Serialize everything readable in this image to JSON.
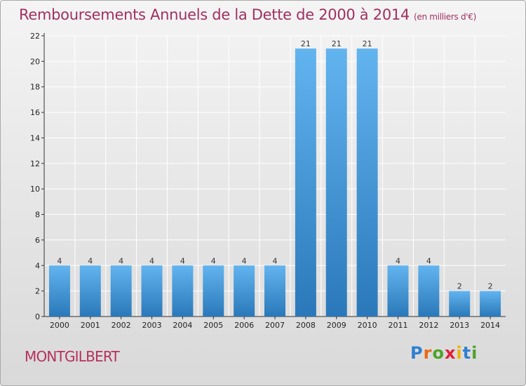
{
  "title": "Remboursements Annuels de la Dette de 2000 à 2014",
  "unit": "(en milliers d'€)",
  "town": "MONTGILBERT",
  "logo": {
    "letters": [
      "P",
      "r",
      "o",
      "x",
      "i",
      "t",
      "i"
    ],
    "colors": [
      "#2f7fd0",
      "#e86a12",
      "#4fa329",
      "#e21f3a",
      "#f0b400",
      "#2f7fd0",
      "#4fa329"
    ]
  },
  "colors": {
    "bar_light": "#62b4ef",
    "bar_dark": "#2a78b9",
    "title": "#a03060",
    "grid": "#ffffff"
  },
  "chart_data": {
    "type": "bar",
    "categories": [
      "2000",
      "2001",
      "2002",
      "2003",
      "2004",
      "2005",
      "2006",
      "2007",
      "2008",
      "2009",
      "2010",
      "2011",
      "2012",
      "2013",
      "2014"
    ],
    "values": [
      4,
      4,
      4,
      4,
      4,
      4,
      4,
      4,
      21,
      21,
      21,
      4,
      4,
      2,
      2
    ],
    "title": "Remboursements Annuels de la Dette de 2000 à 2014",
    "xlabel": "",
    "ylabel": "",
    "ylim": [
      0,
      22
    ],
    "yticks": [
      0,
      2,
      4,
      6,
      8,
      10,
      12,
      14,
      16,
      18,
      20,
      22
    ],
    "grid": true,
    "data_labels": true
  }
}
